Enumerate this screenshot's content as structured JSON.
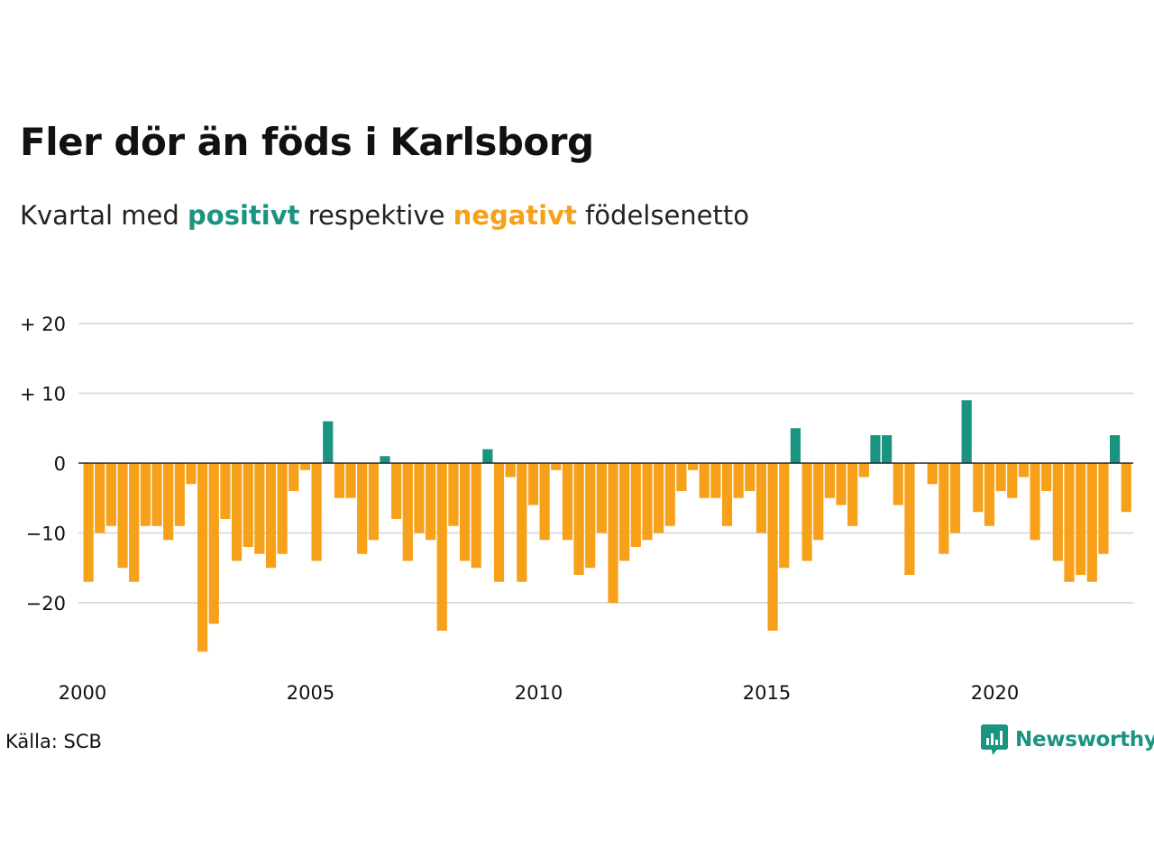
{
  "title": "Fler dör än föds i Karlsborg",
  "subtitle": {
    "part1": "Kvartal med ",
    "positive_word": "positivt",
    "part2": " respektive ",
    "negative_word": "negativt",
    "part3": " födelsenetto"
  },
  "source": "Källa: SCB",
  "logo": {
    "text": "Newsworthy",
    "icon": "chart-bubble-icon"
  },
  "colors": {
    "positive": "#1a9481",
    "negative": "#f7a11a",
    "grid": "#dddddd",
    "zero": "#222222"
  },
  "chart_data": {
    "type": "bar",
    "x_start": "2000 Q1",
    "x_ticks": [
      "2000",
      "2005",
      "2010",
      "2015",
      "2020"
    ],
    "y_ticks": [
      "+ 20",
      "+ 10",
      "0",
      "−10",
      "−20"
    ],
    "y_tick_values": [
      20,
      10,
      0,
      -10,
      -20
    ],
    "ylim": [
      -29,
      22
    ],
    "grid": true,
    "values": [
      -17,
      -10,
      -9,
      -15,
      -17,
      -9,
      -9,
      -11,
      -9,
      -3,
      -27,
      -23,
      -8,
      -14,
      -12,
      -13,
      -15,
      -13,
      -4,
      -1,
      -14,
      6,
      -5,
      -5,
      -13,
      -11,
      1,
      -8,
      -14,
      -10,
      -11,
      -24,
      -9,
      -14,
      -15,
      2,
      -17,
      -2,
      -17,
      -6,
      -11,
      -1,
      -11,
      -16,
      -15,
      -10,
      -20,
      -14,
      -12,
      -11,
      -10,
      -9,
      -4,
      -1,
      -5,
      -5,
      -9,
      -5,
      -4,
      -10,
      -24,
      -15,
      5,
      -14,
      -11,
      -5,
      -6,
      -9,
      -2,
      4,
      4,
      -6,
      -16,
      0,
      -3,
      -13,
      -10,
      9,
      -7,
      -9,
      -4,
      -5,
      -2,
      -11,
      -4,
      -14,
      -17,
      -16,
      -17,
      -13,
      4,
      -7
    ]
  }
}
